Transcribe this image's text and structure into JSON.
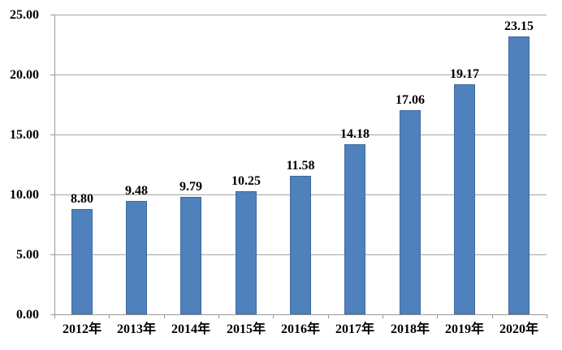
{
  "chart_data": {
    "type": "bar",
    "title": "",
    "xlabel": "",
    "ylabel": "",
    "categories": [
      "2012年",
      "2013年",
      "2014年",
      "2015年",
      "2016年",
      "2017年",
      "2018年",
      "2019年",
      "2020年"
    ],
    "values": [
      8.8,
      9.48,
      9.79,
      10.25,
      11.58,
      14.18,
      17.06,
      19.17,
      23.15
    ],
    "value_labels": [
      "8.80",
      "9.48",
      "9.79",
      "10.25",
      "11.58",
      "14.18",
      "17.06",
      "19.17",
      "23.15"
    ],
    "ylim": [
      0,
      25
    ],
    "y_ticks": [
      0,
      5,
      10,
      15,
      20,
      25
    ],
    "y_tick_labels": [
      "0.00",
      "5.00",
      "10.00",
      "15.00",
      "20.00",
      "25.00"
    ],
    "grid": true,
    "legend": false,
    "colors": {
      "bar_fill": "#4f81bd",
      "bar_border": "#3f6a9c",
      "gridline": "#a6a6a6",
      "axis": "#999999",
      "label_text": "#000000",
      "background": "#ffffff"
    }
  }
}
